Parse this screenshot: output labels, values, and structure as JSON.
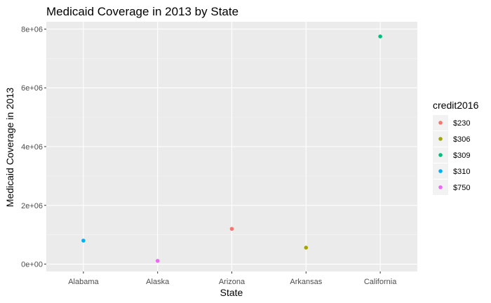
{
  "chart_data": {
    "type": "scatter",
    "title": "Medicaid Coverage in 2013 by State",
    "xlabel": "State",
    "ylabel": "Medicaid Coverage in 2013",
    "categories": [
      "Alabama",
      "Alaska",
      "Arizona",
      "Arkansas",
      "California"
    ],
    "ylim": [
      -250000,
      8250000
    ],
    "yticks": [
      0,
      2000000,
      4000000,
      6000000,
      8000000
    ],
    "ytick_labels": [
      "0e+00",
      "2e+06",
      "4e+06",
      "6e+06",
      "8e+06"
    ],
    "grid": true,
    "legend": {
      "title": "credit2016",
      "position": "right",
      "entries": [
        {
          "label": "$230",
          "color": "#F8766D"
        },
        {
          "label": "$306",
          "color": "#A3A500"
        },
        {
          "label": "$309",
          "color": "#00BF7D"
        },
        {
          "label": "$310",
          "color": "#00B0F6"
        },
        {
          "label": "$750",
          "color": "#E76BF3"
        }
      ]
    },
    "points": [
      {
        "x": "Alabama",
        "y": 800000,
        "credit2016": "$310"
      },
      {
        "x": "Alaska",
        "y": 110000,
        "credit2016": "$750"
      },
      {
        "x": "Arizona",
        "y": 1200000,
        "credit2016": "$230"
      },
      {
        "x": "Arkansas",
        "y": 560000,
        "credit2016": "$306"
      },
      {
        "x": "California",
        "y": 7750000,
        "credit2016": "$309"
      }
    ]
  }
}
